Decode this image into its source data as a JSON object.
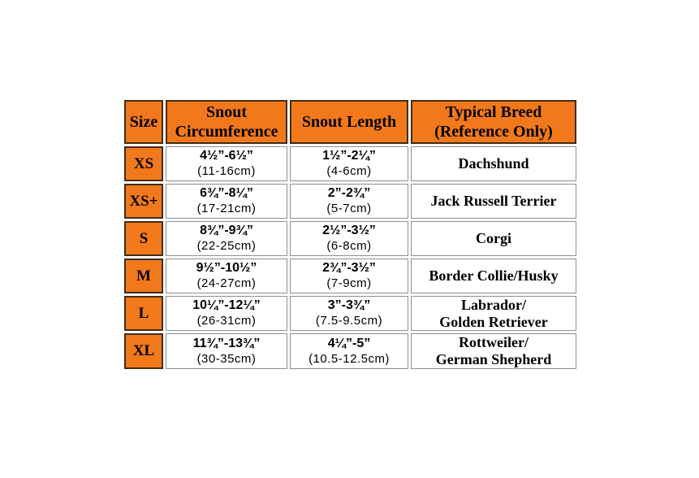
{
  "colors": {
    "orange": "#f2791b",
    "border_dark": "#3f2d16",
    "border_gray": "#8f8f8f",
    "text": "#000000",
    "background": "#ffffff"
  },
  "table": {
    "header": {
      "size": "Size",
      "snout_circumference": "Snout Circumference",
      "snout_length": "Snout Length",
      "typical_breed_lines": [
        "Typical Breed",
        "(Reference Only)"
      ]
    },
    "rows": [
      {
        "size": "XS",
        "circumference_in": "4½”-6½”",
        "circumference_cm": "(11-16cm)",
        "length_in": "1½”-2¼”",
        "length_cm": "(4-6cm)",
        "breed_lines": [
          "Dachshund"
        ]
      },
      {
        "size": "XS+",
        "circumference_in": "6¾”-8¼”",
        "circumference_cm": "(17-21cm)",
        "length_in": "2”-2¾”",
        "length_cm": "(5-7cm)",
        "breed_lines": [
          "Jack Russell Terrier"
        ]
      },
      {
        "size": "S",
        "circumference_in": "8¾”-9¾”",
        "circumference_cm": "(22-25cm)",
        "length_in": "2½”-3½”",
        "length_cm": "(6-8cm)",
        "breed_lines": [
          "Corgi"
        ]
      },
      {
        "size": "M",
        "circumference_in": "9½”-10½”",
        "circumference_cm": "(24-27cm)",
        "length_in": "2¾”-3½”",
        "length_cm": "(7-9cm)",
        "breed_lines": [
          "Border Collie/Husky"
        ]
      },
      {
        "size": "L",
        "circumference_in": "10¼”-12¼”",
        "circumference_cm": "(26-31cm)",
        "length_in": "3”-3¾”",
        "length_cm": "(7.5-9.5cm)",
        "breed_lines": [
          "Labrador/",
          "Golden Retriever"
        ]
      },
      {
        "size": "XL",
        "circumference_in": "11¾”-13¾”",
        "circumference_cm": "(30-35cm)",
        "length_in": "4¼”-5”",
        "length_cm": "(10.5-12.5cm)",
        "breed_lines": [
          "Rottweiler/",
          "German Shepherd"
        ]
      }
    ]
  },
  "chart_data": {
    "type": "table",
    "columns": [
      "Size",
      "Snout Circumference",
      "Snout Length",
      "Typical Breed (Reference Only)"
    ],
    "rows": [
      [
        "XS",
        "4½”-6½” (11-16cm)",
        "1½”-2¼” (4-6cm)",
        "Dachshund"
      ],
      [
        "XS+",
        "6¾”-8¼” (17-21cm)",
        "2”-2¾” (5-7cm)",
        "Jack Russell Terrier"
      ],
      [
        "S",
        "8¾”-9¾” (22-25cm)",
        "2½”-3½” (6-8cm)",
        "Corgi"
      ],
      [
        "M",
        "9½”-10½” (24-27cm)",
        "2¾”-3½” (7-9cm)",
        "Border Collie/Husky"
      ],
      [
        "L",
        "10¼”-12¼” (26-31cm)",
        "3”-3¾” (7.5-9.5cm)",
        "Labrador/Golden Retriever"
      ],
      [
        "XL",
        "11¾”-13¾” (30-35cm)",
        "4¼”-5” (10.5-12.5cm)",
        "Rottweiler/German Shepherd"
      ]
    ]
  }
}
